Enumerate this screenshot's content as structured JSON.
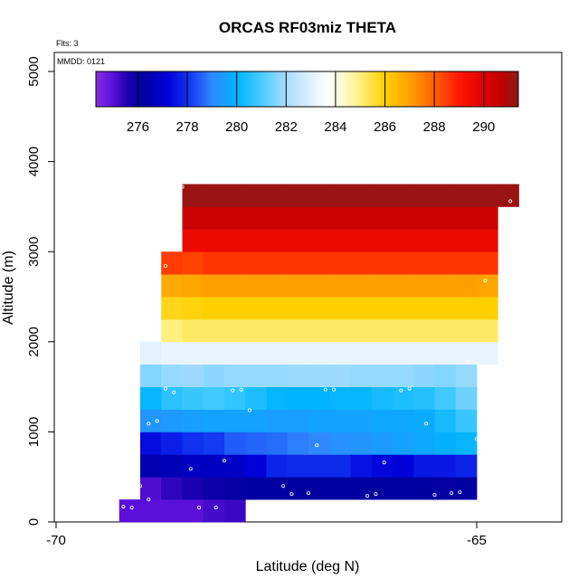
{
  "chart_data": {
    "type": "heatmap",
    "title": "ORCAS RF03miz THETA",
    "subtitle_flights": "Flts: 3",
    "date_label": "MMDD: 0121",
    "xlabel": "Latitude (deg N)",
    "ylabel": "Altitude (m)",
    "xlim": [
      -70,
      -64
    ],
    "ylim": [
      0,
      5200
    ],
    "x_ticks": [
      -70,
      -65
    ],
    "x_tick_labels": [
      "-70",
      "-65"
    ],
    "y_ticks": [
      0,
      1000,
      2000,
      3000,
      4000,
      5000
    ],
    "y_tick_labels": [
      "0",
      "1000",
      "2000",
      "3000",
      "4000",
      "5000"
    ],
    "colorbar": {
      "min": 274.3,
      "max": 291.4,
      "ticks": [
        276,
        278,
        280,
        282,
        284,
        286,
        288,
        290
      ],
      "tick_labels": [
        "276",
        "278",
        "280",
        "282",
        "284",
        "286",
        "288",
        "290"
      ],
      "stops": [
        [
          274.3,
          "#8a2be2"
        ],
        [
          275.0,
          "#5a10d8"
        ],
        [
          275.6,
          "#1a00b0"
        ],
        [
          276.2,
          "#0000a0"
        ],
        [
          277.2,
          "#0000d8"
        ],
        [
          278.0,
          "#1030f0"
        ],
        [
          279.0,
          "#3088ff"
        ],
        [
          280.0,
          "#00b4ff"
        ],
        [
          281.0,
          "#48ccff"
        ],
        [
          282.0,
          "#a8dcff"
        ],
        [
          283.0,
          "#e0f0ff"
        ],
        [
          283.7,
          "#ffffff"
        ],
        [
          284.3,
          "#fffad0"
        ],
        [
          285.0,
          "#fff080"
        ],
        [
          286.0,
          "#ffd000"
        ],
        [
          287.0,
          "#ffa000"
        ],
        [
          288.0,
          "#ff6000"
        ],
        [
          289.0,
          "#ff1800"
        ],
        [
          290.0,
          "#e00000"
        ],
        [
          290.7,
          "#c00000"
        ],
        [
          291.4,
          "#8b1a1a"
        ]
      ]
    },
    "lat_bin_width": 0.25,
    "alt_bin_height": 250,
    "cells": [
      {
        "alt": 125,
        "lat_start": -69.25,
        "values": [
          275.0,
          275.0,
          275.0,
          275.0,
          275.2,
          275.3
        ]
      },
      {
        "alt": 375,
        "lat_start": -69.0,
        "values": [
          275.1,
          275.4,
          275.6,
          275.9,
          276.1,
          276.2,
          276.2,
          276.2,
          276.2,
          276.2,
          276.2,
          276.2,
          276.2,
          276.2,
          276.1,
          276.2
        ]
      },
      {
        "alt": 625,
        "lat_start": -69.0,
        "values": [
          276.5,
          276.6,
          276.8,
          276.8,
          276.9,
          277.2,
          277.8,
          277.9,
          277.9,
          277.9,
          277.5,
          277.3,
          277.2,
          277.6,
          277.6,
          277.8
        ]
      },
      {
        "alt": 875,
        "lat_start": -69.0,
        "values": [
          277.4,
          277.7,
          278.0,
          278.1,
          278.5,
          278.6,
          278.7,
          278.9,
          279.0,
          279.2,
          279.3,
          279.4,
          279.6,
          279.7,
          279.9,
          280.1
        ]
      },
      {
        "alt": 1125,
        "lat_start": -69.0,
        "values": [
          279.3,
          279.4,
          279.5,
          279.6,
          279.6,
          279.6,
          279.5,
          279.5,
          279.6,
          279.6,
          279.6,
          279.7,
          279.7,
          279.8,
          280.3,
          280.8
        ]
      },
      {
        "alt": 1375,
        "lat_start": -69.0,
        "values": [
          280.1,
          280.6,
          280.8,
          280.9,
          280.7,
          280.4,
          280.1,
          280.0,
          280.0,
          280.1,
          280.1,
          280.3,
          280.4,
          280.5,
          280.9,
          281.4
        ]
      },
      {
        "alt": 1625,
        "lat_start": -69.0,
        "values": [
          281.6,
          281.8,
          281.9,
          281.7,
          281.8,
          281.8,
          281.8,
          281.9,
          281.9,
          281.9,
          281.8,
          281.8,
          281.8,
          281.7,
          281.6,
          281.8
        ]
      },
      {
        "alt": 1875,
        "lat_start": -69.0,
        "values": [
          283.1,
          283.2,
          283.2,
          283.2,
          283.2,
          283.2,
          283.2,
          283.2,
          283.2,
          283.2,
          283.2,
          283.2,
          283.2,
          283.2,
          283.2,
          283.2,
          283.2
        ]
      },
      {
        "alt": 2125,
        "lat_start": -68.75,
        "values": [
          285.0,
          285.2,
          285.2,
          285.2,
          285.2,
          285.2,
          285.2,
          285.2,
          285.2,
          285.2,
          285.2,
          285.2,
          285.2,
          285.2,
          285.2,
          285.2
        ]
      },
      {
        "alt": 2375,
        "lat_start": -68.75,
        "values": [
          285.8,
          285.9,
          286.0,
          286.0,
          286.0,
          286.0,
          286.0,
          286.0,
          286.0,
          286.0,
          286.0,
          286.0,
          286.0,
          286.0,
          286.0,
          286.0
        ]
      },
      {
        "alt": 2625,
        "lat_start": -68.75,
        "values": [
          286.8,
          286.9,
          287.0,
          287.0,
          287.0,
          287.0,
          287.0,
          287.0,
          287.0,
          287.0,
          287.0,
          287.0,
          287.0,
          287.0,
          287.0,
          286.9
        ]
      },
      {
        "alt": 2875,
        "lat_start": -68.75,
        "values": [
          288.5,
          288.4,
          288.6,
          288.6,
          288.6,
          288.6,
          288.6,
          288.6,
          288.6,
          288.6,
          288.6,
          288.6,
          288.6,
          288.6,
          288.6,
          288.6
        ]
      },
      {
        "alt": 3125,
        "lat_start": -68.5,
        "values": [
          289.6,
          289.6,
          289.6,
          289.6,
          289.6,
          289.6,
          289.6,
          289.6,
          289.6,
          289.6,
          289.6,
          289.6,
          289.6,
          289.6,
          289.6
        ]
      },
      {
        "alt": 3375,
        "lat_start": -68.5,
        "values": [
          290.5,
          290.5,
          290.5,
          290.5,
          290.5,
          290.5,
          290.5,
          290.5,
          290.5,
          290.5,
          290.5,
          290.5,
          290.5,
          290.5,
          290.5
        ]
      },
      {
        "alt": 3625,
        "lat_start": -68.5,
        "values": [
          291.2,
          291.2,
          291.2,
          291.2,
          291.2,
          291.2,
          291.2,
          291.2,
          291.2,
          291.2,
          291.2,
          291.2,
          291.2,
          291.2,
          291.2,
          291.2
        ]
      }
    ],
    "sample_points": [
      {
        "lat": -69.2,
        "alt": 170
      },
      {
        "lat": -69.1,
        "alt": 160
      },
      {
        "lat": -68.9,
        "alt": 250
      },
      {
        "lat": -68.3,
        "alt": 160
      },
      {
        "lat": -68.1,
        "alt": 160
      },
      {
        "lat": -69.0,
        "alt": 400
      },
      {
        "lat": -67.3,
        "alt": 400
      },
      {
        "lat": -67.2,
        "alt": 310
      },
      {
        "lat": -67.0,
        "alt": 320
      },
      {
        "lat": -66.3,
        "alt": 290
      },
      {
        "lat": -66.2,
        "alt": 310
      },
      {
        "lat": -65.5,
        "alt": 300
      },
      {
        "lat": -65.3,
        "alt": 320
      },
      {
        "lat": -65.2,
        "alt": 330
      },
      {
        "lat": -68.4,
        "alt": 590
      },
      {
        "lat": -68.0,
        "alt": 680
      },
      {
        "lat": -66.1,
        "alt": 660
      },
      {
        "lat": -66.9,
        "alt": 850
      },
      {
        "lat": -65.0,
        "alt": 920
      },
      {
        "lat": -68.9,
        "alt": 1090
      },
      {
        "lat": -68.8,
        "alt": 1120
      },
      {
        "lat": -65.6,
        "alt": 1090
      },
      {
        "lat": -67.7,
        "alt": 1240
      },
      {
        "lat": -68.7,
        "alt": 1480
      },
      {
        "lat": -68.6,
        "alt": 1440
      },
      {
        "lat": -67.9,
        "alt": 1460
      },
      {
        "lat": -67.8,
        "alt": 1470
      },
      {
        "lat": -66.8,
        "alt": 1470
      },
      {
        "lat": -66.7,
        "alt": 1470
      },
      {
        "lat": -65.9,
        "alt": 1460
      },
      {
        "lat": -65.8,
        "alt": 1480
      },
      {
        "lat": -65.1,
        "alt": 1780
      },
      {
        "lat": -68.7,
        "alt": 2840
      },
      {
        "lat": -68.5,
        "alt": 3720
      },
      {
        "lat": -64.9,
        "alt": 2680
      },
      {
        "lat": -64.6,
        "alt": 3560
      }
    ]
  }
}
